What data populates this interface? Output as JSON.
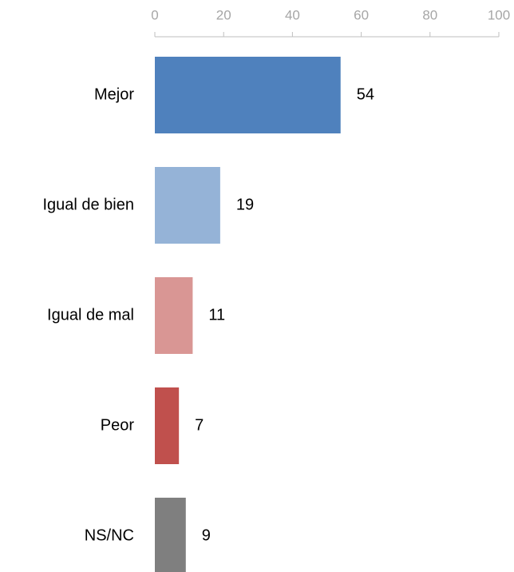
{
  "chart_data": {
    "type": "bar",
    "orientation": "horizontal",
    "categories": [
      "Mejor",
      "Igual de bien",
      "Igual de mal",
      "Peor",
      "NS/NC"
    ],
    "values": [
      54,
      19,
      11,
      7,
      9
    ],
    "colors": [
      "#4f81bd",
      "#95b3d7",
      "#d99694",
      "#c0504d",
      "#7f7f7f"
    ],
    "xlim": [
      0,
      100
    ],
    "xticks": [
      0,
      20,
      40,
      60,
      80,
      100
    ],
    "axis_position": "top"
  }
}
